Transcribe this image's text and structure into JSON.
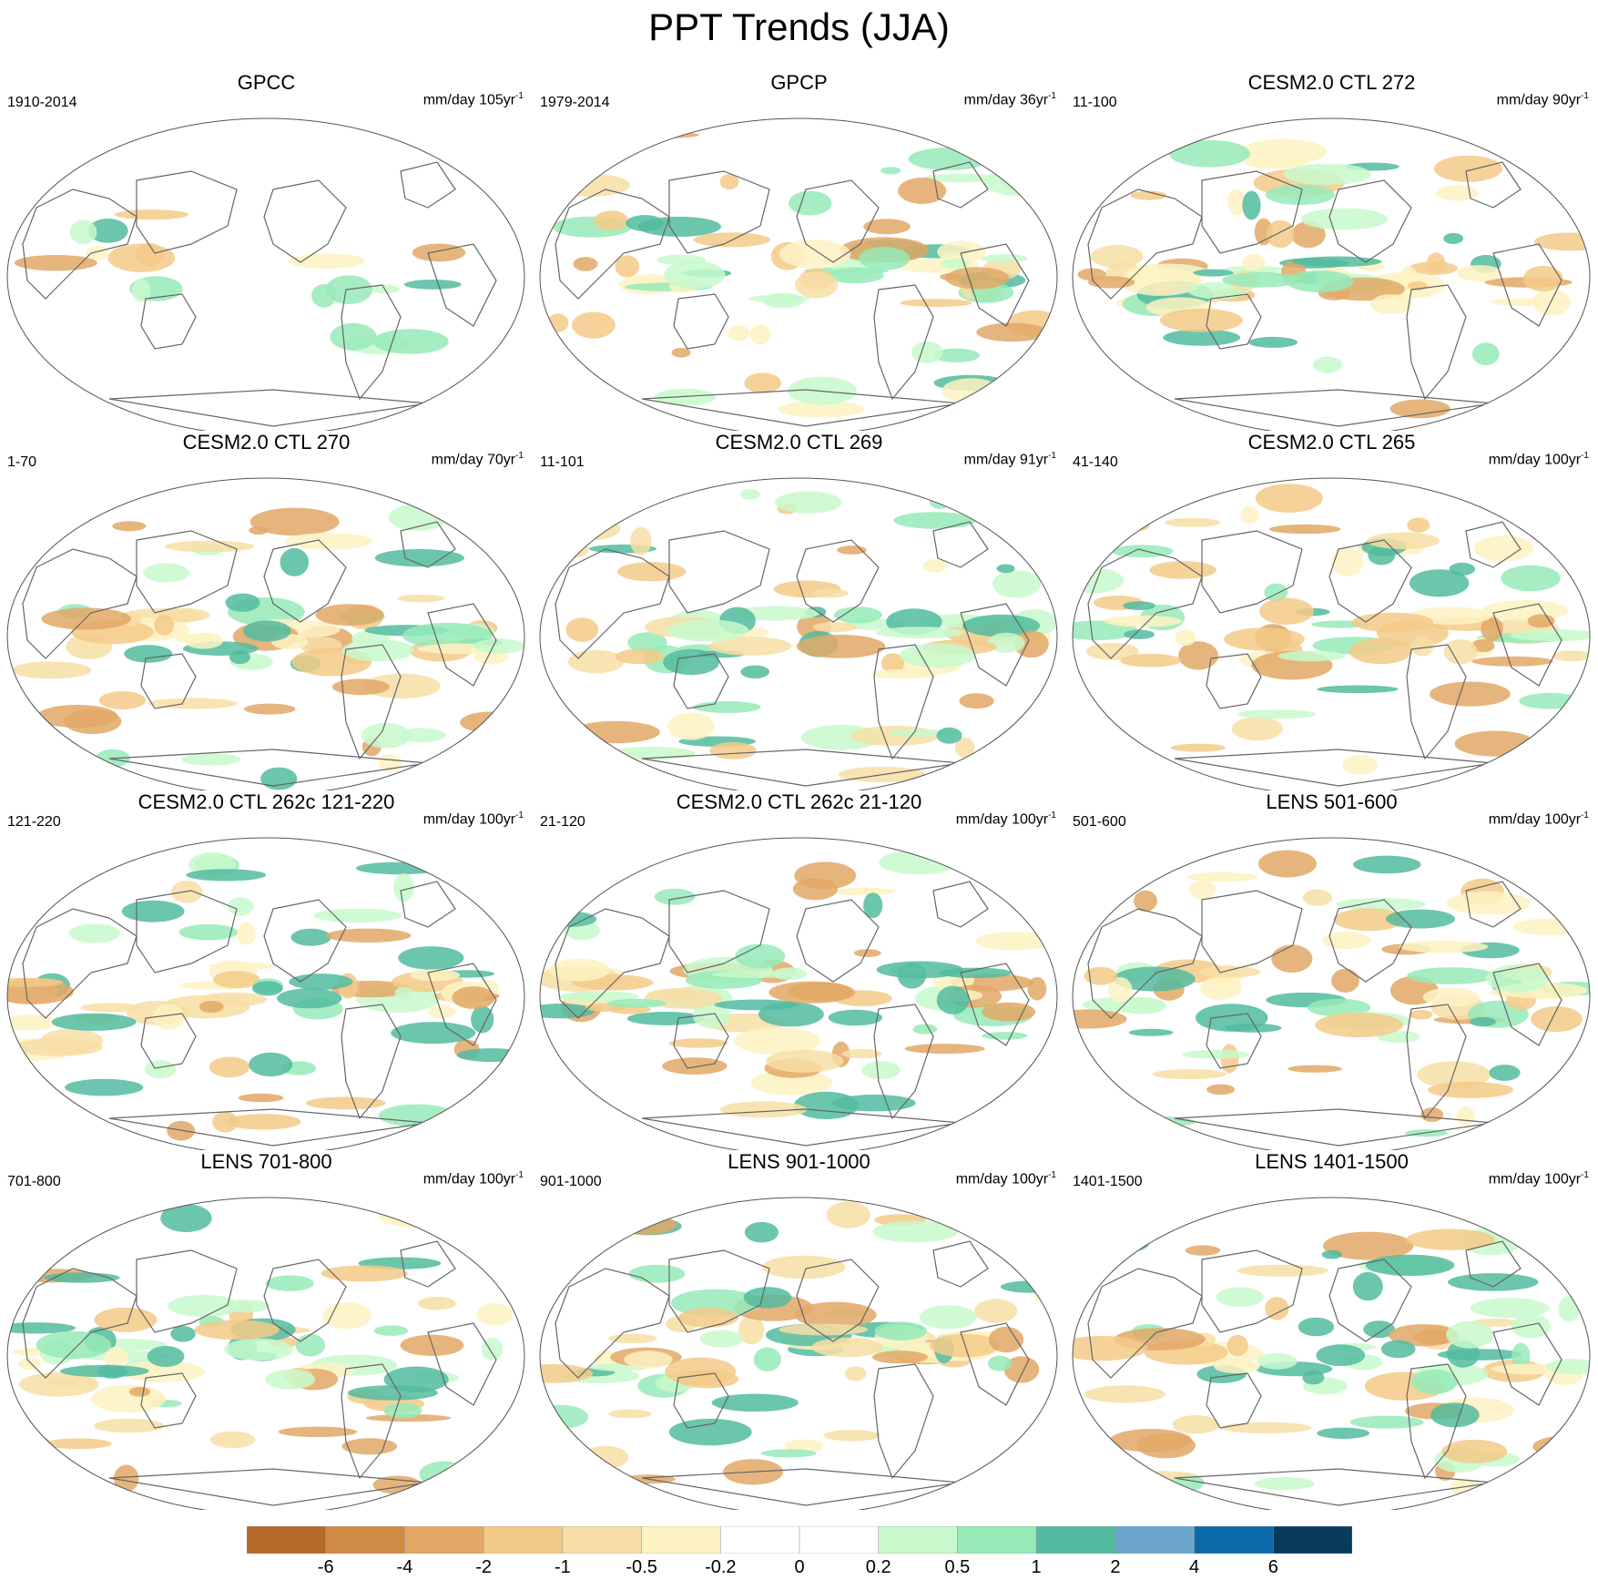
{
  "title": "PPT Trends (JJA)",
  "panels": [
    {
      "title": "GPCC",
      "left": "1910-2014",
      "units": "mm/day 105yr",
      "units_sup": "-1"
    },
    {
      "title": "GPCP",
      "left": "1979-2014",
      "units": "mm/day 36yr",
      "units_sup": "-1"
    },
    {
      "title": "CESM2.0 CTL 272",
      "left": "11-100",
      "units": "mm/day 90yr",
      "units_sup": "-1"
    },
    {
      "title": "CESM2.0 CTL 270",
      "left": "1-70",
      "units": "mm/day 70yr",
      "units_sup": "-1"
    },
    {
      "title": "CESM2.0 CTL 269",
      "left": "11-101",
      "units": "mm/day 91yr",
      "units_sup": "-1"
    },
    {
      "title": "CESM2.0 CTL 265",
      "left": "41-140",
      "units": "mm/day 100yr",
      "units_sup": "-1"
    },
    {
      "title": "CESM2.0 CTL 262c 121-220",
      "left": "121-220",
      "units": "mm/day 100yr",
      "units_sup": "-1"
    },
    {
      "title": "CESM2.0 CTL 262c 21-120",
      "left": "21-120",
      "units": "mm/day 100yr",
      "units_sup": "-1"
    },
    {
      "title": "LENS 501-600",
      "left": "501-600",
      "units": "mm/day 100yr",
      "units_sup": "-1"
    },
    {
      "title": "LENS 701-800",
      "left": "701-800",
      "units": "mm/day 100yr",
      "units_sup": "-1"
    },
    {
      "title": "LENS 901-1000",
      "left": "901-1000",
      "units": "mm/day 100yr",
      "units_sup": "-1"
    },
    {
      "title": "LENS 1401-1500",
      "left": "1401-1500",
      "units": "mm/day 100yr",
      "units_sup": "-1"
    }
  ],
  "colorbar": {
    "colors": [
      "#b5692a",
      "#cf8a45",
      "#e2a866",
      "#f3ca88",
      "#f7dea6",
      "#fdf2c2",
      "#ffffff",
      "#ffffff",
      "#c8f9cc",
      "#96eab8",
      "#52bb9f",
      "#6aa6cb",
      "#0a6aaa",
      "#083a5c"
    ],
    "labels": [
      "-6",
      "-4",
      "-2",
      "-1",
      "-0.5",
      "-0.2",
      "0",
      "0.2",
      "0.5",
      "1",
      "2",
      "4",
      "6"
    ]
  }
}
